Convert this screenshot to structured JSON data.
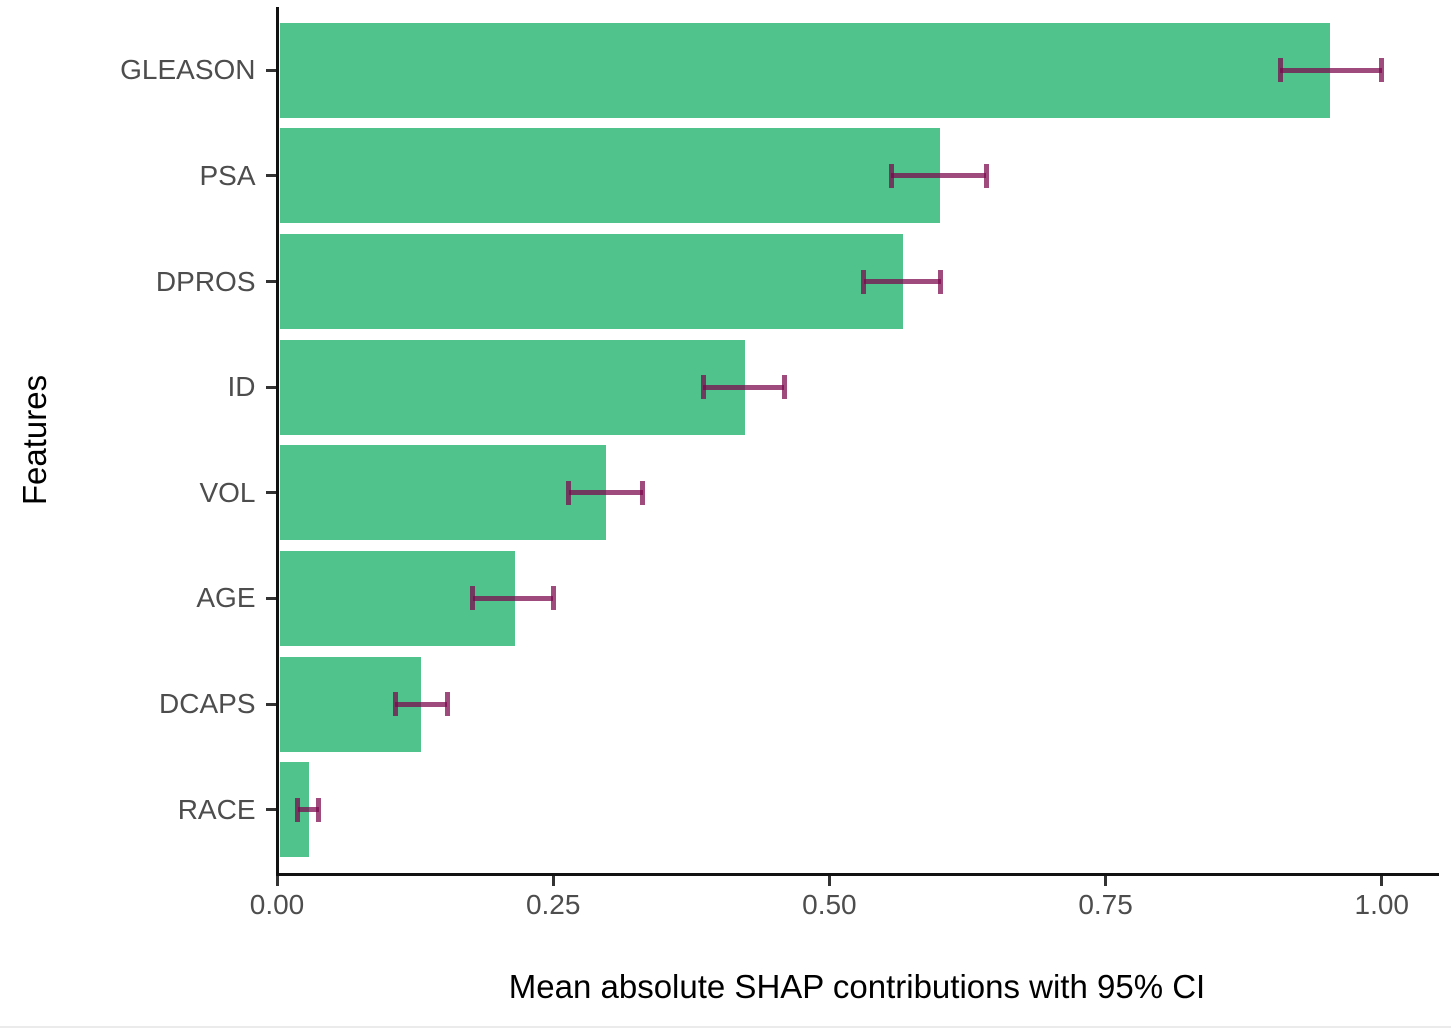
{
  "chart_data": {
    "type": "bar",
    "orientation": "horizontal",
    "title": "",
    "xlabel": "Mean absolute SHAP contributions with 95% CI",
    "ylabel": "Features",
    "categories": [
      "GLEASON",
      "PSA",
      "DPROS",
      "ID",
      "VOL",
      "AGE",
      "DCAPS",
      "RACE"
    ],
    "values": [
      0.953,
      0.6,
      0.567,
      0.424,
      0.298,
      0.215,
      0.13,
      0.029
    ],
    "ci_low": [
      0.908,
      0.556,
      0.531,
      0.386,
      0.264,
      0.177,
      0.107,
      0.019
    ],
    "ci_high": [
      1.0,
      0.642,
      0.601,
      0.459,
      0.331,
      0.25,
      0.154,
      0.038
    ],
    "x_tick_labels": [
      "0.00",
      "0.25",
      "0.50",
      "0.75",
      "1.00"
    ],
    "x_tick_values": [
      0,
      0.25,
      0.5,
      0.75,
      1.0
    ],
    "xlim": [
      0,
      1.05
    ],
    "grid": false,
    "legend": false,
    "colors": {
      "bar": "#4fc38b",
      "errorbar": "rgba(124, 6, 76, 0.72)",
      "axis_line": "#111111",
      "tick_mark": "#333333",
      "tick_label": "#4d4d4d",
      "axis_title": "#000000"
    }
  }
}
